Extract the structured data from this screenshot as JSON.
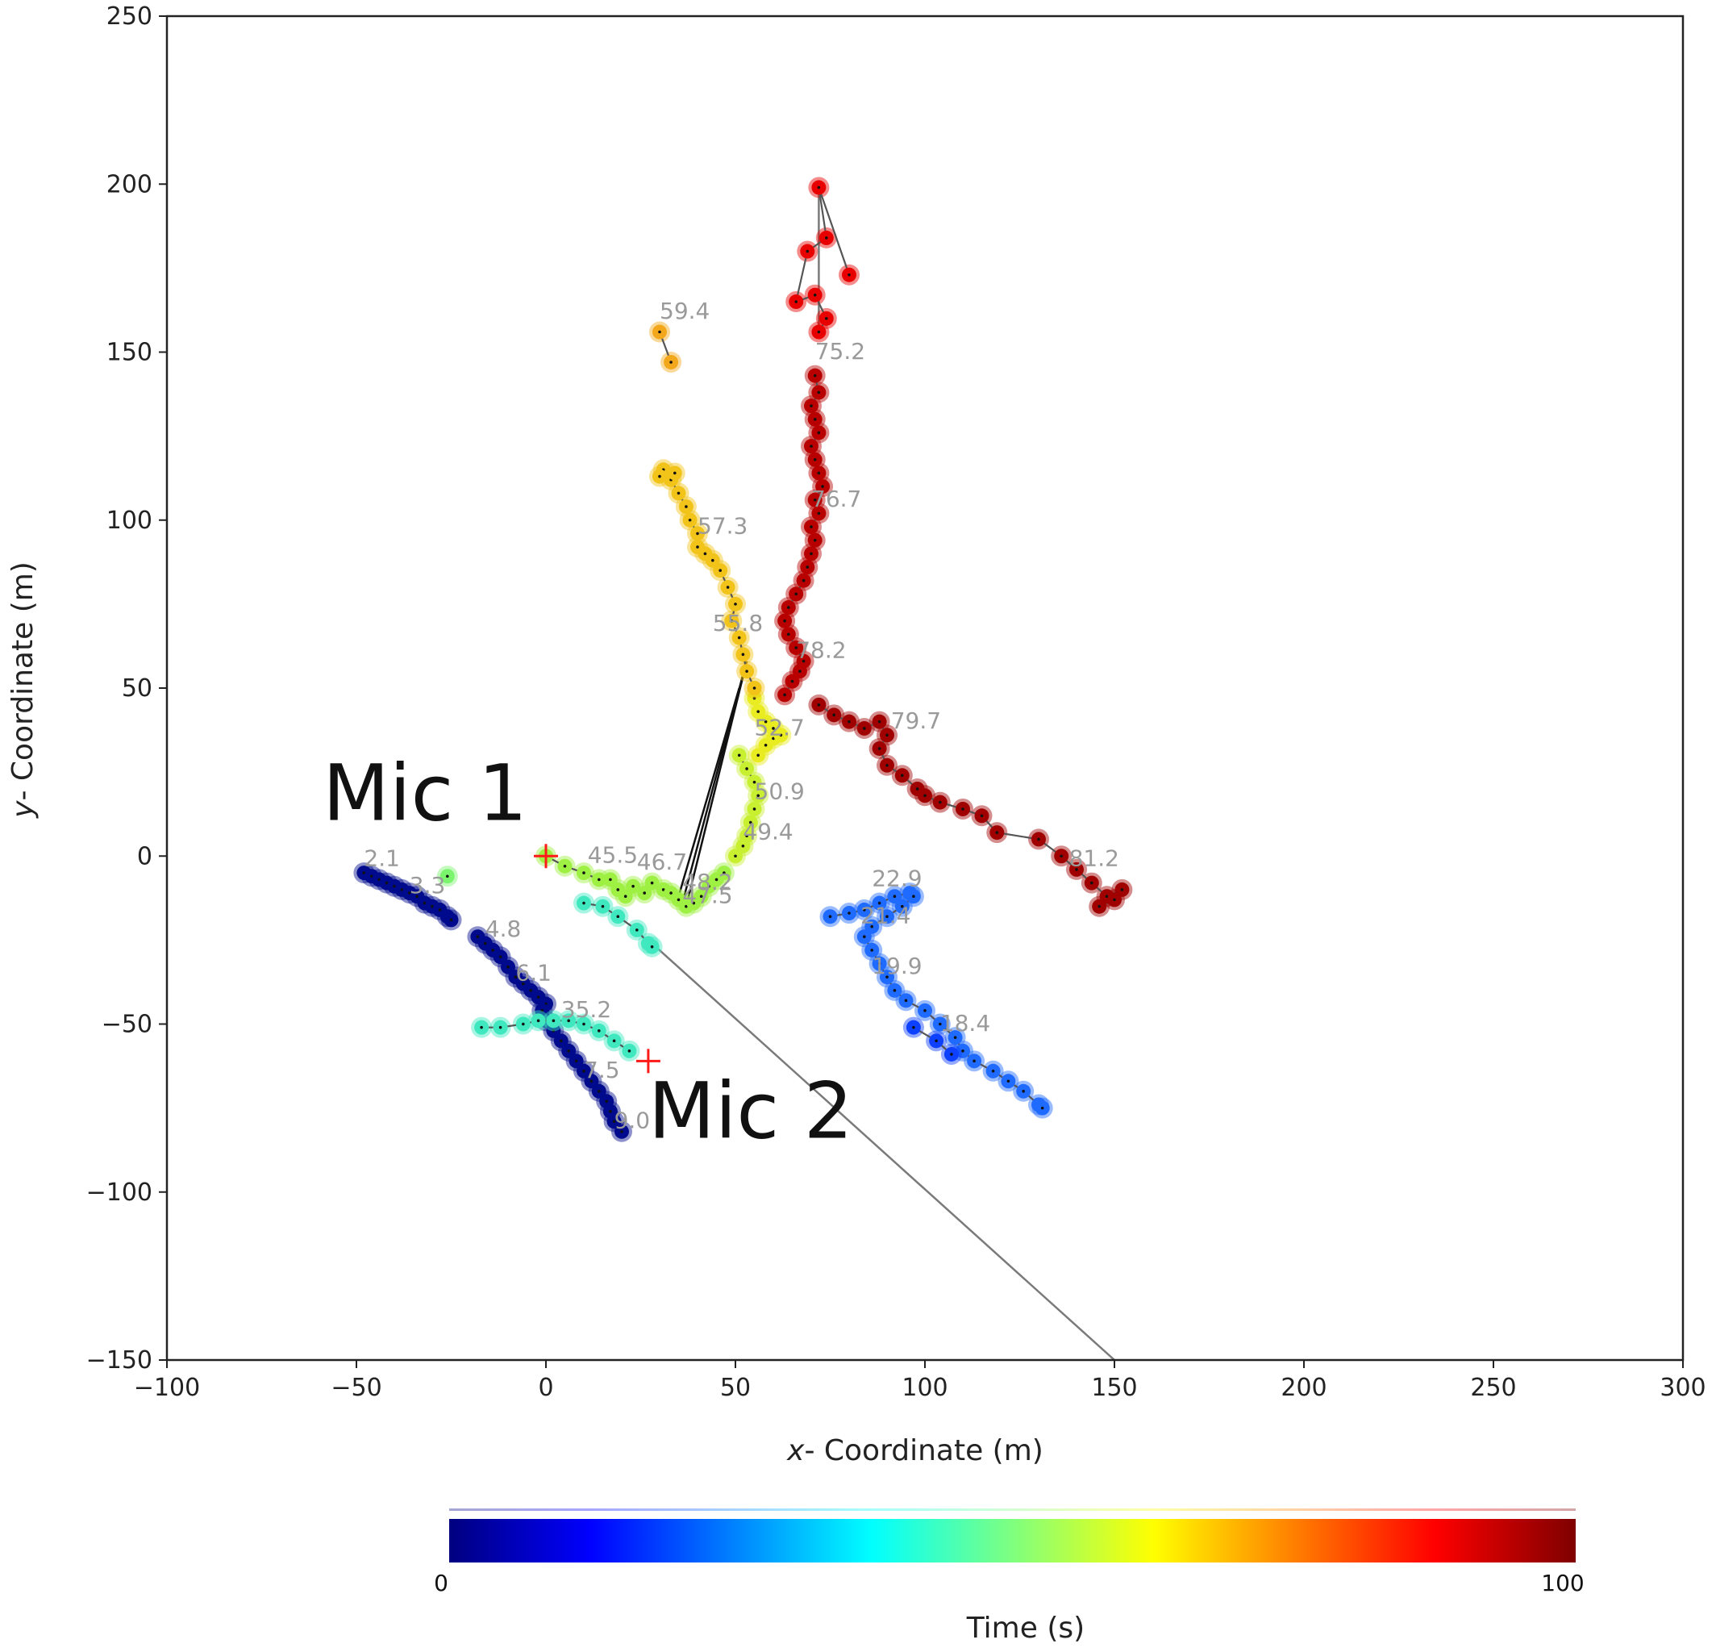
{
  "chart_data": {
    "type": "scatter",
    "xlabel_italic": "x",
    "xlabel_rest": "- Coordinate (m)",
    "ylabel_italic": "y",
    "ylabel_rest": "- Coordinate (m)",
    "xlim": [
      -100,
      300
    ],
    "ylim": [
      -150,
      250
    ],
    "xticks": [
      -100,
      -50,
      0,
      50,
      100,
      150,
      200,
      250,
      300
    ],
    "yticks": [
      -150,
      -100,
      -50,
      0,
      50,
      100,
      150,
      200,
      250
    ],
    "xtick_labels": [
      "−100",
      "−50",
      "0",
      "50",
      "100",
      "150",
      "200",
      "250",
      "300"
    ],
    "ytick_labels": [
      "−150",
      "−100",
      "−50",
      "0",
      "50",
      "100",
      "150",
      "200",
      "250"
    ],
    "grid": false,
    "colorbar": {
      "label": "Time (s)",
      "min": 0,
      "max": 100,
      "min_label": "0",
      "max_label": "100",
      "colormap": "jet",
      "stops": [
        "#00007f",
        "#0000ff",
        "#007fff",
        "#00ffff",
        "#7fff7f",
        "#ffff00",
        "#ff7f00",
        "#ff0000",
        "#7f0000"
      ]
    },
    "microphones": [
      {
        "label": "Mic 1",
        "x": 0,
        "y": 0
      },
      {
        "label": "Mic 2",
        "x": 27,
        "y": -61
      }
    ],
    "tracks": [
      {
        "color": "#000a8c",
        "points": [
          [
            -48,
            -5
          ],
          [
            -46,
            -6
          ],
          [
            -44,
            -7
          ],
          [
            -42,
            -8
          ],
          [
            -40,
            -9
          ],
          [
            -38,
            -10
          ],
          [
            -36,
            -11
          ],
          [
            -34,
            -12
          ],
          [
            -32,
            -14
          ],
          [
            -30,
            -15
          ],
          [
            -28,
            -16
          ],
          [
            -26,
            -18
          ],
          [
            -25,
            -19
          ]
        ]
      },
      {
        "color": "#000a8c",
        "points": [
          [
            -18,
            -24
          ],
          [
            -16,
            -26
          ],
          [
            -14,
            -28
          ],
          [
            -12,
            -30
          ],
          [
            -10,
            -33
          ],
          [
            -8,
            -36
          ],
          [
            -6,
            -38
          ],
          [
            -4,
            -40
          ],
          [
            -2,
            -42
          ],
          [
            0,
            -44
          ],
          [
            -1,
            -46
          ],
          [
            0,
            -49
          ],
          [
            2,
            -52
          ],
          [
            4,
            -55
          ],
          [
            6,
            -58
          ],
          [
            8,
            -61
          ],
          [
            10,
            -64
          ],
          [
            12,
            -67
          ],
          [
            14,
            -70
          ],
          [
            16,
            -73
          ],
          [
            17,
            -76
          ],
          [
            18,
            -79
          ],
          [
            20,
            -82
          ]
        ]
      },
      {
        "color": "#7cf56e",
        "points": [
          [
            -26,
            -6
          ]
        ]
      },
      {
        "color": "#40e8c0",
        "points": [
          [
            -17,
            -51
          ],
          [
            -12,
            -51
          ],
          [
            -6,
            -50
          ],
          [
            -2,
            -49
          ],
          [
            2,
            -49
          ],
          [
            6,
            -49
          ],
          [
            10,
            -50
          ],
          [
            14,
            -52
          ],
          [
            18,
            -55
          ],
          [
            22,
            -58
          ]
        ]
      },
      {
        "color": "#40e8c0",
        "points": [
          [
            10,
            -14
          ],
          [
            15,
            -15
          ],
          [
            19,
            -18
          ],
          [
            24,
            -22
          ],
          [
            27,
            -26
          ],
          [
            28,
            -27
          ]
        ]
      },
      {
        "color": "#9ef042",
        "points": [
          [
            0,
            0
          ],
          [
            5,
            -3
          ],
          [
            10,
            -5
          ],
          [
            14,
            -7
          ],
          [
            17,
            -7
          ],
          [
            19,
            -10
          ],
          [
            21,
            -12
          ],
          [
            23,
            -9
          ],
          [
            26,
            -11
          ],
          [
            28,
            -8
          ],
          [
            31,
            -10
          ],
          [
            33,
            -11
          ],
          [
            35,
            -13
          ],
          [
            37,
            -15
          ],
          [
            39,
            -14
          ],
          [
            41,
            -12
          ],
          [
            43,
            -9
          ],
          [
            45,
            -7
          ],
          [
            47,
            -5
          ]
        ]
      },
      {
        "color": "#c8f030",
        "points": [
          [
            50,
            0
          ],
          [
            52,
            3
          ],
          [
            53,
            6
          ],
          [
            54,
            10
          ],
          [
            55,
            14
          ],
          [
            56,
            18
          ],
          [
            55,
            22
          ],
          [
            53,
            26
          ],
          [
            51,
            30
          ]
        ]
      },
      {
        "color": "#e8ec20",
        "points": [
          [
            56,
            30
          ],
          [
            58,
            33
          ],
          [
            60,
            35
          ],
          [
            62,
            36
          ],
          [
            60,
            38
          ],
          [
            58,
            40
          ],
          [
            56,
            43
          ],
          [
            55,
            47
          ]
        ]
      },
      {
        "color": "#f2c419",
        "points": [
          [
            55,
            50
          ],
          [
            53,
            55
          ],
          [
            52,
            60
          ],
          [
            51,
            65
          ],
          [
            49,
            70
          ],
          [
            50,
            75
          ],
          [
            48,
            80
          ],
          [
            46,
            85
          ],
          [
            44,
            88
          ],
          [
            42,
            90
          ],
          [
            40,
            92
          ],
          [
            40,
            96
          ],
          [
            38,
            100
          ],
          [
            37,
            104
          ],
          [
            35,
            108
          ],
          [
            33,
            112
          ],
          [
            31,
            115
          ],
          [
            30,
            113
          ],
          [
            34,
            114
          ]
        ]
      },
      {
        "color": "#f2a81a",
        "points": [
          [
            30,
            156
          ],
          [
            33,
            147
          ]
        ]
      },
      {
        "color": "#b80000",
        "points": [
          [
            63,
            48
          ],
          [
            65,
            52
          ],
          [
            67,
            55
          ],
          [
            68,
            58
          ],
          [
            66,
            62
          ],
          [
            64,
            66
          ],
          [
            63,
            70
          ],
          [
            64,
            74
          ],
          [
            66,
            78
          ],
          [
            68,
            82
          ],
          [
            69,
            86
          ],
          [
            70,
            90
          ],
          [
            71,
            94
          ],
          [
            70,
            98
          ],
          [
            72,
            102
          ],
          [
            71,
            106
          ],
          [
            73,
            110
          ],
          [
            72,
            114
          ],
          [
            71,
            118
          ],
          [
            70,
            122
          ],
          [
            72,
            126
          ],
          [
            71,
            130
          ],
          [
            70,
            134
          ],
          [
            72,
            138
          ],
          [
            71,
            143
          ]
        ]
      },
      {
        "color": "#e80000",
        "points": [
          [
            72,
            156
          ],
          [
            74,
            160
          ],
          [
            71,
            167
          ],
          [
            66,
            165
          ],
          [
            69,
            180
          ],
          [
            74,
            184
          ],
          [
            72,
            199
          ],
          [
            80,
            173
          ]
        ]
      },
      {
        "color": "#a00000",
        "points": [
          [
            72,
            45
          ],
          [
            76,
            42
          ],
          [
            80,
            40
          ],
          [
            84,
            38
          ],
          [
            88,
            40
          ],
          [
            90,
            36
          ],
          [
            88,
            32
          ],
          [
            90,
            27
          ],
          [
            94,
            24
          ],
          [
            98,
            20
          ],
          [
            100,
            18
          ],
          [
            104,
            16
          ],
          [
            110,
            14
          ],
          [
            115,
            12
          ],
          [
            119,
            7
          ],
          [
            130,
            5
          ],
          [
            136,
            0
          ],
          [
            140,
            -4
          ],
          [
            144,
            -8
          ],
          [
            148,
            -12
          ],
          [
            152,
            -10
          ],
          [
            150,
            -13
          ],
          [
            146,
            -15
          ]
        ]
      },
      {
        "color": "#1f6aff",
        "points": [
          [
            75,
            -18
          ],
          [
            80,
            -17
          ],
          [
            84,
            -16
          ],
          [
            88,
            -14
          ],
          [
            92,
            -12
          ],
          [
            96,
            -11
          ],
          [
            97,
            -12
          ],
          [
            94,
            -15
          ],
          [
            90,
            -18
          ],
          [
            86,
            -21
          ],
          [
            84,
            -24
          ],
          [
            86,
            -28
          ],
          [
            88,
            -32
          ],
          [
            90,
            -36
          ],
          [
            92,
            -40
          ],
          [
            95,
            -43
          ],
          [
            100,
            -46
          ],
          [
            104,
            -50
          ],
          [
            108,
            -54
          ],
          [
            110,
            -58
          ],
          [
            113,
            -61
          ],
          [
            118,
            -64
          ],
          [
            122,
            -67
          ],
          [
            126,
            -70
          ],
          [
            130,
            -74
          ],
          [
            131,
            -75
          ]
        ]
      },
      {
        "color": "#0d40ff",
        "points": [
          [
            97,
            -51
          ],
          [
            103,
            -55
          ],
          [
            107,
            -59
          ]
        ]
      }
    ],
    "connectors": [
      {
        "from": [
          28,
          -26
        ],
        "to": [
          150,
          -150
        ],
        "color": "#7a7a7a"
      },
      {
        "from": [
          37,
          -15
        ],
        "to": [
          53,
          58
        ],
        "color": "#111111"
      },
      {
        "from": [
          36,
          -14
        ],
        "to": [
          52,
          54
        ],
        "color": "#111111"
      },
      {
        "from": [
          35,
          -12
        ],
        "to": [
          51,
          50
        ],
        "color": "#111111"
      },
      {
        "from": [
          72,
          156
        ],
        "to": [
          72,
          199
        ],
        "color": "#7a7a7a"
      }
    ],
    "time_labels": [
      {
        "text": "2.1",
        "x": -48,
        "y": -3
      },
      {
        "text": "3.3",
        "x": -36,
        "y": -11
      },
      {
        "text": "4.8",
        "x": -16,
        "y": -24
      },
      {
        "text": "6.1",
        "x": -8,
        "y": -37
      },
      {
        "text": "7.5",
        "x": 10,
        "y": -66
      },
      {
        "text": "9.0",
        "x": 18,
        "y": -81
      },
      {
        "text": "35.2",
        "x": 4,
        "y": -48
      },
      {
        "text": "45.5",
        "x": 11,
        "y": -2
      },
      {
        "text": "46.7",
        "x": 24,
        "y": -4
      },
      {
        "text": "48.2",
        "x": 36,
        "y": -10
      },
      {
        "text": "47.5",
        "x": 36,
        "y": -14
      },
      {
        "text": "49.4",
        "x": 52,
        "y": 5
      },
      {
        "text": "50.9",
        "x": 55,
        "y": 17
      },
      {
        "text": "52.7",
        "x": 55,
        "y": 36
      },
      {
        "text": "55.8",
        "x": 44,
        "y": 67
      },
      {
        "text": "57.3",
        "x": 40,
        "y": 96
      },
      {
        "text": "59.4",
        "x": 30,
        "y": 160
      },
      {
        "text": "75.2",
        "x": 71,
        "y": 148
      },
      {
        "text": "76.7",
        "x": 70,
        "y": 104
      },
      {
        "text": "78.2",
        "x": 66,
        "y": 59
      },
      {
        "text": "79.7",
        "x": 91,
        "y": 38
      },
      {
        "text": "81.2",
        "x": 138,
        "y": -3
      },
      {
        "text": "22.9",
        "x": 86,
        "y": -9
      },
      {
        "text": "21.4",
        "x": 83,
        "y": -20
      },
      {
        "text": "19.9",
        "x": 86,
        "y": -35
      },
      {
        "text": "18.4",
        "x": 104,
        "y": -52
      }
    ]
  }
}
